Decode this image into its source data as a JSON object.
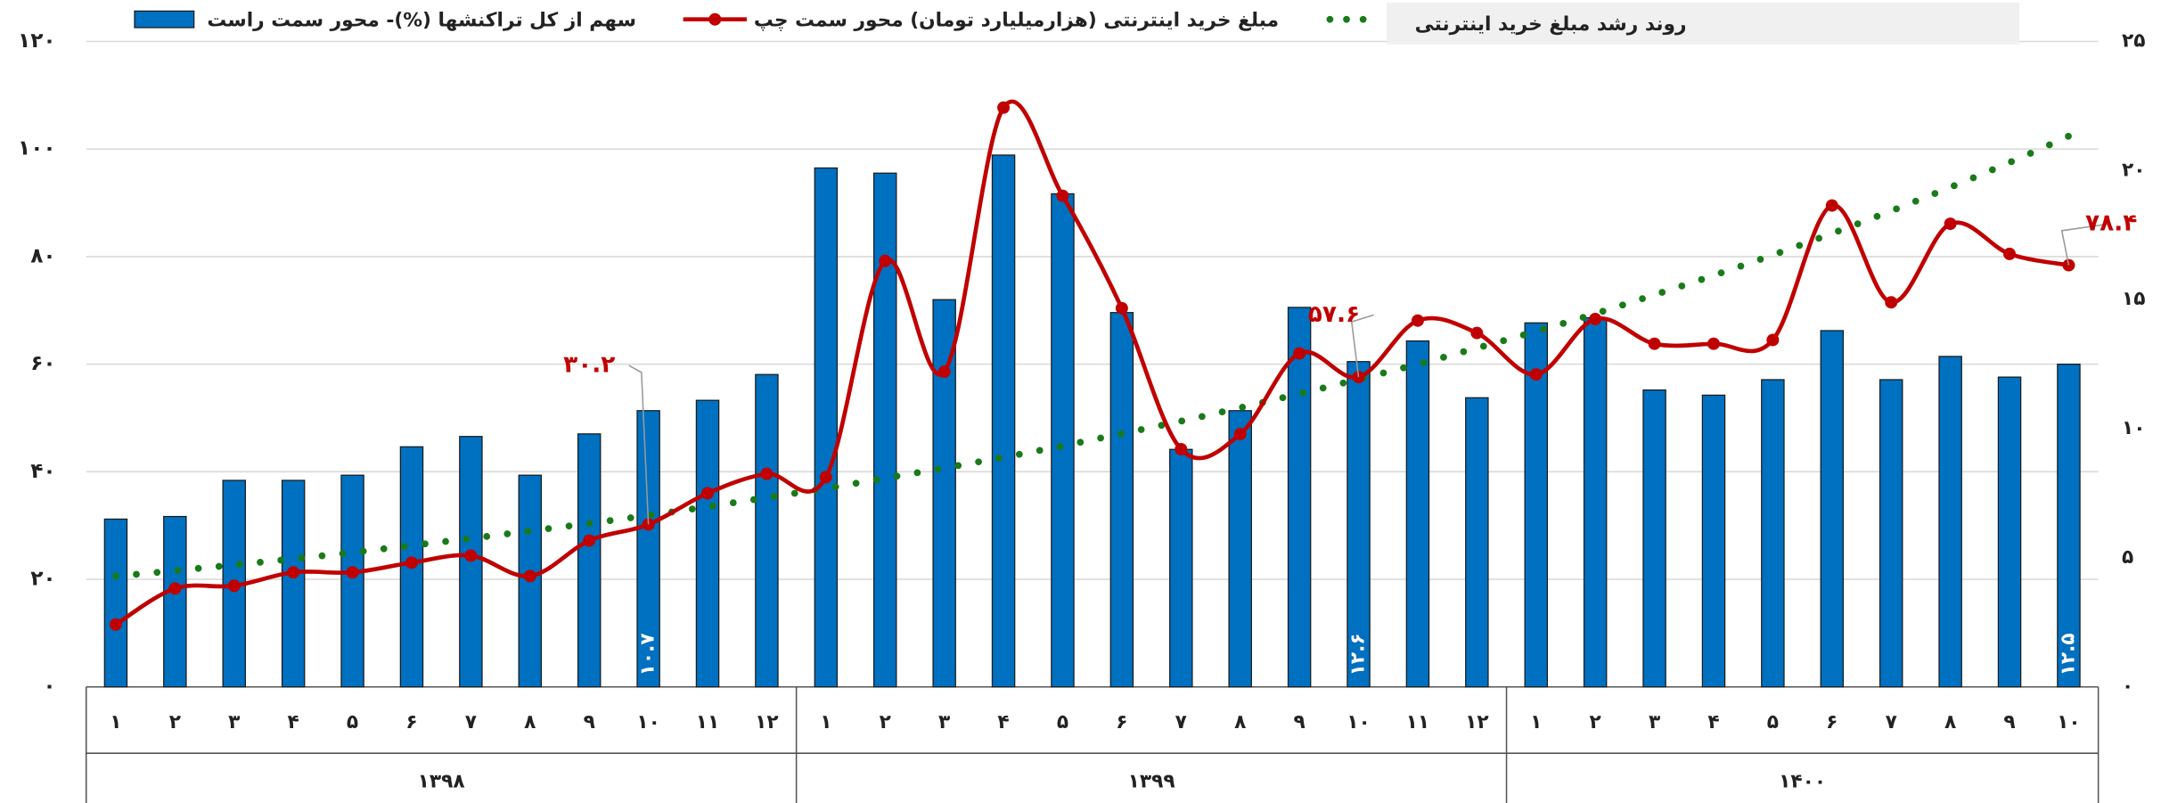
{
  "chart_data": {
    "type": "combo",
    "groups": [
      {
        "name": "۱۳۹۸",
        "categories": [
          "۱",
          "۲",
          "۳",
          "۴",
          "۵",
          "۶",
          "۷",
          "۸",
          "۹",
          "۱۰",
          "۱۱",
          "۱۲"
        ]
      },
      {
        "name": "۱۳۹۹",
        "categories": [
          "۱",
          "۲",
          "۳",
          "۴",
          "۵",
          "۶",
          "۷",
          "۸",
          "۹",
          "۱۰",
          "۱۱",
          "۱۲"
        ]
      },
      {
        "name": "۱۴۰۰",
        "categories": [
          "۱",
          "۲",
          "۳",
          "۴",
          "۵",
          "۶",
          "۷",
          "۸",
          "۹",
          "۱۰"
        ]
      }
    ],
    "ylim": [
      0,
      120
    ],
    "yticks": [
      {
        "value": 0,
        "label": "۰"
      },
      {
        "value": 20,
        "label": "۲۰"
      },
      {
        "value": 40,
        "label": "۴۰"
      },
      {
        "value": 60,
        "label": "۶۰"
      },
      {
        "value": 80,
        "label": "۸۰"
      },
      {
        "value": 100,
        "label": "۱۰۰"
      },
      {
        "value": 120,
        "label": "۱۲۰"
      }
    ],
    "y2lim": [
      0,
      25
    ],
    "y2ticks": [
      {
        "value": 0,
        "label": "۰"
      },
      {
        "value": 5,
        "label": "۵"
      },
      {
        "value": 10,
        "label": "۱۰"
      },
      {
        "value": 15,
        "label": "۱۵"
      },
      {
        "value": 20,
        "label": "۲۰"
      },
      {
        "value": 25,
        "label": "۲۵"
      }
    ],
    "grid": true,
    "legend": "top",
    "series": [
      {
        "name": "سهم از کل تراکنشها (%)- محور سمت راست",
        "type": "bar",
        "axis": "y2",
        "color": "#0070c0",
        "values": [
          6.5,
          6.6,
          8.0,
          8.0,
          8.2,
          9.3,
          9.7,
          8.2,
          9.8,
          10.7,
          11.1,
          12.1,
          20.1,
          19.9,
          15.0,
          20.6,
          19.1,
          14.5,
          9.2,
          10.7,
          14.7,
          12.6,
          13.4,
          11.2,
          14.1,
          14.3,
          11.5,
          11.3,
          11.9,
          13.8,
          11.9,
          12.8,
          12.0,
          12.5
        ],
        "value_labels": [
          null,
          null,
          null,
          null,
          null,
          null,
          null,
          null,
          null,
          "۱۰.۷",
          null,
          null,
          null,
          null,
          null,
          null,
          null,
          null,
          null,
          null,
          null,
          "۱۲.۶",
          null,
          null,
          null,
          null,
          null,
          null,
          null,
          null,
          null,
          null,
          null,
          "۱۲.۵"
        ]
      },
      {
        "name": "مبلغ خرید اینترنتی (هزارمیلیارد تومان) محور سمت چپ",
        "type": "line",
        "color": "#c00000",
        "values": [
          11.6,
          18.3,
          18.8,
          21.3,
          21.3,
          23.1,
          24.4,
          20.6,
          27.2,
          30.2,
          36.0,
          39.6,
          39.0,
          79.2,
          58.6,
          107.7,
          91.3,
          70.4,
          44.2,
          47.0,
          62.0,
          57.6,
          68.1,
          65.8,
          58.1,
          68.4,
          63.8,
          63.8,
          64.5,
          89.5,
          71.5,
          86.1,
          80.5,
          78.4
        ],
        "value_labels": [
          null,
          null,
          null,
          null,
          null,
          null,
          null,
          null,
          null,
          "۳۰.۲",
          null,
          null,
          null,
          null,
          null,
          null,
          null,
          null,
          null,
          null,
          null,
          "۵۷.۶",
          null,
          null,
          null,
          null,
          null,
          null,
          null,
          null,
          null,
          null,
          null,
          "۷۸.۴"
        ]
      },
      {
        "name": "روند رشد مبلغ خرید اینترنتی",
        "type": "line",
        "style": "dotted",
        "color": "#1a7a1a",
        "values": [
          20.6,
          21.6,
          22.7,
          23.8,
          25.0,
          26.3,
          27.6,
          29.0,
          30.4,
          31.9,
          33.5,
          35.2,
          36.9,
          38.8,
          40.7,
          42.7,
          44.8,
          47.1,
          49.4,
          51.9,
          54.5,
          57.2,
          60.0,
          63.0,
          66.1,
          69.4,
          72.9,
          76.5,
          80.3,
          84.3,
          88.5,
          92.9,
          97.5,
          102.4
        ]
      }
    ]
  }
}
